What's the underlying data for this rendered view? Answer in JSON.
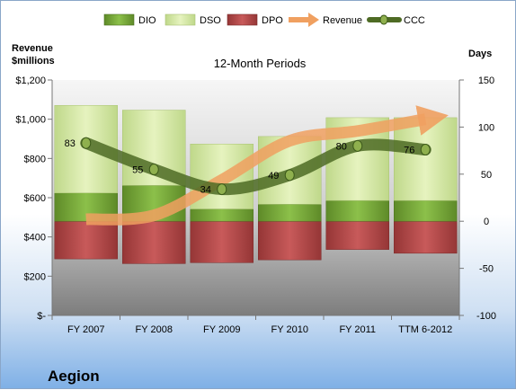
{
  "company": "Aegion",
  "chart_data": {
    "type": "bar",
    "title": "12-Month Periods",
    "categories": [
      "FY 2007",
      "FY 2008",
      "FY 2009",
      "FY 2010",
      "FY 2011",
      "TTM 6-2012"
    ],
    "y_left": {
      "label_line1": "Revenue",
      "label_line2": "$millions",
      "range": [
        0,
        1200
      ],
      "ticks": [
        0,
        200,
        400,
        600,
        800,
        1000,
        1200
      ],
      "tick_labels": [
        "$-",
        "$200",
        "$400",
        "$600",
        "$800",
        "$1,000",
        "$1,200"
      ]
    },
    "y_right": {
      "label": "Days",
      "range": [
        -100,
        150
      ],
      "ticks": [
        -100,
        -50,
        0,
        50,
        100,
        150
      ],
      "tick_labels": [
        "-100",
        "-50",
        "0",
        "50",
        "100",
        "150"
      ]
    },
    "legend_position": "top",
    "series": [
      {
        "name": "DIO",
        "kind": "bar-days",
        "color": "#77a83a",
        "values": [
          30,
          38,
          13,
          18,
          22,
          22
        ]
      },
      {
        "name": "DSO",
        "kind": "bar-days",
        "color": "#d6e9a4",
        "values": [
          93,
          80,
          69,
          72,
          88,
          88
        ]
      },
      {
        "name": "DPO",
        "kind": "bar-days-negative",
        "color": "#b84c4c",
        "values": [
          40,
          45,
          44,
          41,
          30,
          34
        ]
      },
      {
        "name": "Revenue",
        "kind": "line",
        "axis": "left",
        "color": "#f0a060",
        "values": [
          490,
          510,
          690,
          890,
          940,
          1000
        ]
      },
      {
        "name": "CCC",
        "kind": "line",
        "axis": "right",
        "color": "#4e6b24",
        "values": [
          83,
          55,
          34,
          49,
          80,
          76
        ]
      }
    ],
    "data_labels": [
      "83",
      "55",
      "34",
      "49",
      "80",
      "76"
    ],
    "grid": false
  }
}
